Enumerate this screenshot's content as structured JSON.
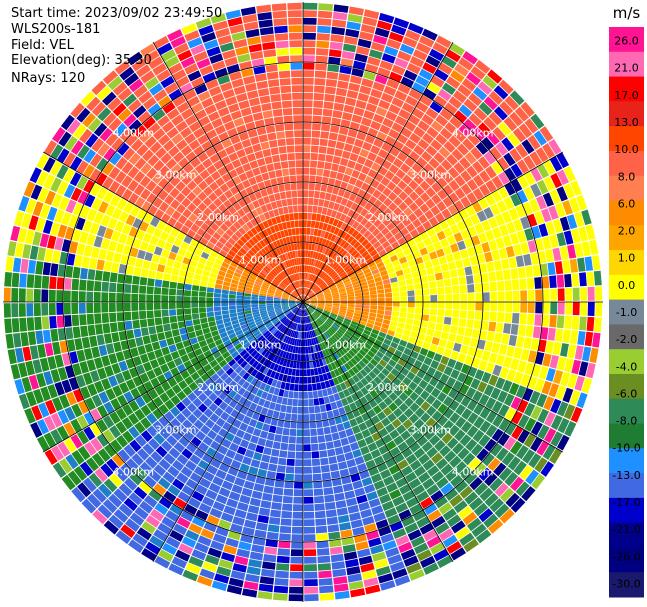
{
  "header": {
    "start_time": "Start time: 2023/09/02 23:49:50",
    "radar": "WLS200s-181",
    "field": "Field: VEL",
    "elevation": "Elevation(deg): 35.30",
    "nrays": "NRays: 120"
  },
  "chart_data": {
    "type": "heatmap",
    "projection": "polar PPI",
    "field": "VEL",
    "units": "m/s",
    "n_rays": 120,
    "range_rings_km": [
      1.0,
      2.0,
      3.0,
      4.0
    ],
    "ring_labels": [
      "1.00km",
      "2.00km",
      "3.00km",
      "4.00km"
    ],
    "max_range_km": 5.0,
    "spoke_step_deg": 30,
    "colorbar": {
      "unit_label": "m/s",
      "tick_labels": [
        "26.0",
        "21.0",
        "17.0",
        "13.0",
        "10.0",
        "8.0",
        "6.0",
        "2.0",
        "1.0",
        "0.0",
        "-1.0",
        "-2.0",
        "-4.0",
        "-6.0",
        "-8.0",
        "-10.0",
        "-13.0",
        "-17.0",
        "-21.0",
        "-26.0",
        "-30.0"
      ],
      "colors": [
        "#ff1493",
        "#ff69b4",
        "#ff0000",
        "#e8241a",
        "#ff4500",
        "#ff6347",
        "#ff7f50",
        "#ff8c00",
        "#ffa500",
        "#ffd700",
        "#ffff00",
        "#778899",
        "#696969",
        "#9acd32",
        "#6b8e23",
        "#2e8b57",
        "#1e7d32",
        "#1e90ff",
        "#4169e1",
        "#0000cd",
        "#00008b",
        "#000080",
        "#191970"
      ]
    },
    "pattern": {
      "description_sectors": [
        {
          "azimuth_from": 300,
          "azimuth_to": 60,
          "velocity": 10
        },
        {
          "azimuth_from": 60,
          "azimuth_to": 110,
          "velocity": 2
        },
        {
          "azimuth_from": 110,
          "azimuth_to": 160,
          "velocity": -4
        },
        {
          "azimuth_from": 160,
          "azimuth_to": 230,
          "velocity": -10
        },
        {
          "azimuth_from": 230,
          "azimuth_to": 280,
          "velocity": -6
        },
        {
          "azimuth_from": 280,
          "azimuth_to": 300,
          "velocity": 2
        }
      ]
    }
  }
}
